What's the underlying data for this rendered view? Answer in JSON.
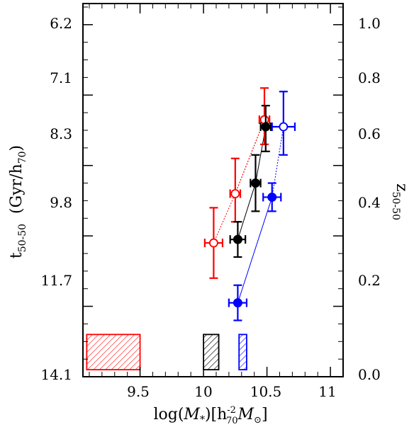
{
  "chart_data": {
    "type": "scatter",
    "xlim": [
      9.05,
      11.1
    ],
    "ylim_left_t": [
      5.8,
      14.1
    ],
    "ylim_right_z": [
      0.0,
      1.06
    ],
    "y_axis_direction": "left axis increases downward",
    "x_ticks": [
      "9.5",
      "10",
      "10.5",
      "11"
    ],
    "x_tick_values": [
      9.5,
      10.0,
      10.5,
      11.0
    ],
    "left_ticks": [
      "6.2",
      "7.1",
      "8.3",
      "9.8",
      "11.7",
      "14.1"
    ],
    "right_ticks": [
      "1.0",
      "0.8",
      "0.6",
      "0.4",
      "0.2",
      "0.0"
    ],
    "right_tick_values": [
      1.0,
      0.8,
      0.6,
      0.4,
      0.2,
      0.0
    ],
    "xlabel": {
      "prefix": "log(",
      "mathcal": "M",
      "sub": "*",
      "mid": ")[h",
      "unit_sup": "-2",
      "unit_sub": "70",
      "unit_mathcal": "M",
      "unit_sub2": "⊙",
      "suffix": "]"
    },
    "ylabel_left": {
      "t": "t",
      "sub": "50-50",
      "mid": "  (Gyr/h",
      "sub2": "70",
      "suffix": ")"
    },
    "ylabel_right": {
      "z": "z",
      "sub": "50-50"
    },
    "grid": false,
    "series": [
      {
        "color": "#ff0000",
        "marker": "open-circle",
        "connector": "dotted",
        "points": [
          {
            "x": 10.08,
            "z": 0.38,
            "xerr": 0.07,
            "zerr": [
              0.1,
              0.1
            ]
          },
          {
            "x": 10.25,
            "z": 0.52,
            "xerr": 0.04,
            "zerr": [
              0.08,
              0.1
            ]
          },
          {
            "x": 10.48,
            "z": 0.73,
            "xerr": 0.04,
            "zerr": [
              0.07,
              0.09
            ]
          }
        ]
      },
      {
        "color": "#000000",
        "marker": "filled-circle",
        "connector": "solid",
        "points": [
          {
            "x": 10.27,
            "z": 0.39,
            "xerr": 0.06,
            "zerr": [
              0.05,
              0.05
            ]
          },
          {
            "x": 10.41,
            "z": 0.55,
            "xerr": 0.04,
            "zerr": [
              0.08,
              0.08
            ]
          },
          {
            "x": 10.49,
            "z": 0.71,
            "xerr": 0.04,
            "zerr": [
              0.07,
              0.06
            ]
          }
        ]
      },
      {
        "color": "#0000ff",
        "marker": "filled-circle",
        "connector": "solid",
        "points": [
          {
            "x": 10.27,
            "z": 0.21,
            "xerr": 0.07,
            "zerr": [
              0.05,
              0.05
            ]
          },
          {
            "x": 10.54,
            "z": 0.51,
            "xerr": 0.07,
            "zerr": [
              0.04,
              0.04
            ]
          }
        ]
      },
      {
        "color": "#0000ff",
        "marker": "open-circle",
        "connector": "dotted",
        "points": [
          {
            "x": 10.63,
            "z": 0.71,
            "xerr": 0.09,
            "zerr": [
              0.08,
              0.1
            ]
          }
        ]
      }
    ],
    "extra_connectors": [
      {
        "color": "#0000ff",
        "style": "dotted",
        "from": {
          "x": 10.54,
          "z": 0.51
        },
        "to": {
          "x": 10.63,
          "z": 0.71
        }
      },
      {
        "color": "#ff0000",
        "style": "dotted",
        "from": {
          "x": 10.25,
          "z": 0.52
        },
        "to": {
          "x": 10.48,
          "z": 0.73
        }
      }
    ],
    "hatched_boxes": [
      {
        "color": "#ff0000",
        "x0": 9.08,
        "x1": 9.5,
        "z0": 0.02,
        "z1": 0.12
      },
      {
        "color": "#000000",
        "x0": 10.0,
        "x1": 10.12,
        "z0": 0.02,
        "z1": 0.12
      },
      {
        "color": "#0000ff",
        "x0": 10.28,
        "x1": 10.34,
        "z0": 0.02,
        "z1": 0.12
      }
    ]
  }
}
